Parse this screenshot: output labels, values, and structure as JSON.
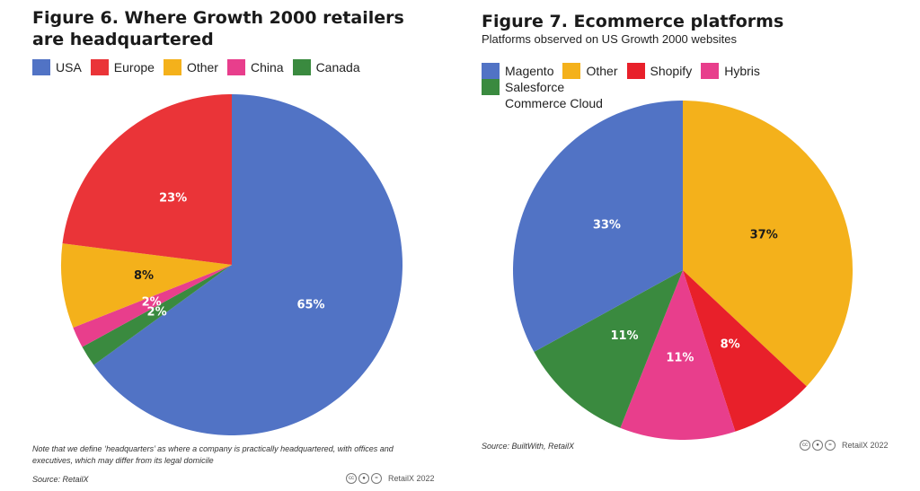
{
  "charts": [
    {
      "title": "Figure 6. Where Growth 2000 retailers are headquartered",
      "subtitle": "",
      "note": "Note that we define ‘headquarters’ as where a company is practically headquartered, with offices and executives, which may differ from its legal domicile",
      "source": "Source: RetailX",
      "credit": "RetailX 2022",
      "cc_icons": [
        "cc",
        "by",
        "nd"
      ]
    },
    {
      "title": "Figure 7. Ecommerce platforms",
      "subtitle": "Platforms observed on US Growth 2000 websites",
      "note": "",
      "source": "Source: BuiltWith, RetailX",
      "credit": "RetailX 2022",
      "cc_icons": [
        "cc",
        "by",
        "nd"
      ]
    }
  ],
  "chart_data": [
    {
      "type": "pie",
      "title": "Figure 6. Where Growth 2000 retailers are headquartered",
      "legend_position": "top",
      "slices": [
        {
          "label": "USA",
          "value": 65,
          "display": "65%",
          "color": "#5173c5",
          "text_color": "#ffffff"
        },
        {
          "label": "Canada",
          "value": 2,
          "display": "2%",
          "color": "#3a8a3f",
          "text_color": "#ffffff"
        },
        {
          "label": "China",
          "value": 2,
          "display": "2%",
          "color": "#e83e8c",
          "text_color": "#ffffff"
        },
        {
          "label": "Other",
          "value": 8,
          "display": "8%",
          "color": "#f4b11b",
          "text_color": "#1a1a1a"
        },
        {
          "label": "Europe",
          "value": 23,
          "display": "23%",
          "color": "#ea3438",
          "text_color": "#ffffff"
        }
      ],
      "legend_order": [
        "USA",
        "Europe",
        "Other",
        "China",
        "Canada"
      ]
    },
    {
      "type": "pie",
      "title": "Figure 7. Ecommerce platforms",
      "legend_position": "top",
      "slices": [
        {
          "label": "Other",
          "value": 37,
          "display": "37%",
          "color": "#f4b11b",
          "text_color": "#1a1a1a"
        },
        {
          "label": "Shopify",
          "value": 8,
          "display": "8%",
          "color": "#e8202a",
          "text_color": "#ffffff"
        },
        {
          "label": "Hybris",
          "value": 11,
          "display": "11%",
          "color": "#e83e8c",
          "text_color": "#ffffff"
        },
        {
          "label": "Salesforce Commerce Cloud",
          "value": 11,
          "display": "11%",
          "color": "#3a8a3f",
          "text_color": "#ffffff"
        },
        {
          "label": "Magento",
          "value": 33,
          "display": "33%",
          "color": "#5173c5",
          "text_color": "#ffffff"
        }
      ],
      "legend_order": [
        "Magento",
        "Other",
        "Shopify",
        "Hybris",
        "Salesforce Commerce Cloud"
      ]
    }
  ]
}
